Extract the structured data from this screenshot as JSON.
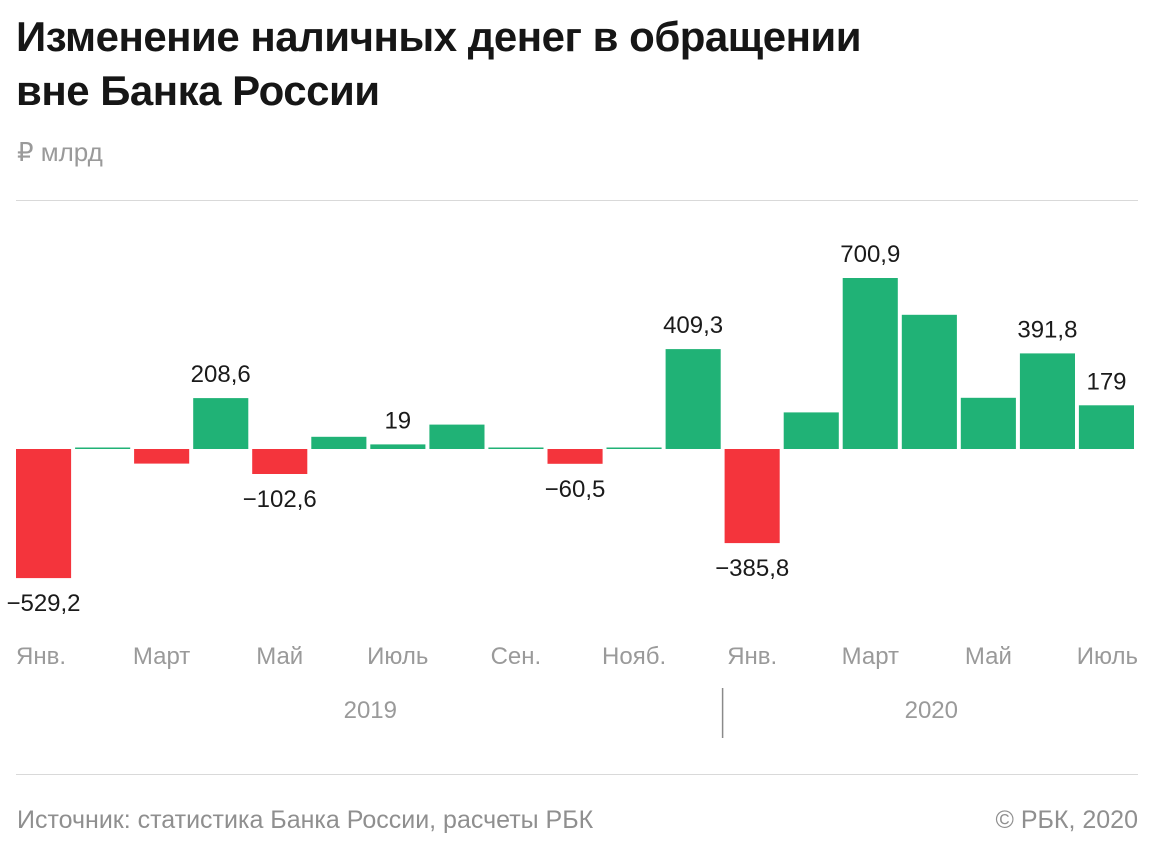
{
  "header": {
    "title_line1": "Изменение наличных денег в обращении",
    "title_line2": "вне Банка России",
    "unit": "₽ млрд"
  },
  "footer": {
    "source": "Источник: статистика Банка России, расчеты РБК",
    "copyright": "© РБК, 2020"
  },
  "chart_data": {
    "type": "bar",
    "categories": [
      "Янв. 2019",
      "Фев. 2019",
      "Март 2019",
      "Апр. 2019",
      "Май 2019",
      "Июнь 2019",
      "Июль 2019",
      "Авг. 2019",
      "Сен. 2019",
      "Окт. 2019",
      "Нояб. 2019",
      "Дек. 2019",
      "Янв. 2020",
      "Фев. 2020",
      "Март 2020",
      "Апр. 2020",
      "Май 2020",
      "Июнь 2020",
      "Июль 2020"
    ],
    "values": [
      -529.2,
      5,
      -60,
      208.6,
      -102.6,
      50,
      19,
      100,
      3,
      -60.5,
      3,
      409.3,
      -385.8,
      150,
      700.9,
      550,
      210,
      391.8,
      179
    ],
    "value_labels": [
      "−529,2",
      "",
      "",
      "208,6",
      "−102,6",
      "",
      "19",
      "",
      "",
      "−60,5",
      "",
      "409,3",
      "−385,8",
      "",
      "700,9",
      "",
      "",
      "391,8",
      "179"
    ],
    "tick_labels": [
      "Янв.",
      "",
      "Март",
      "",
      "Май",
      "",
      "Июль",
      "",
      "Сен.",
      "",
      "Нояб.",
      "",
      "Янв.",
      "",
      "Март",
      "",
      "Май",
      "",
      "Июль"
    ],
    "year_groups": [
      {
        "label": "2019",
        "start": 0,
        "end": 11
      },
      {
        "label": "2020",
        "start": 12,
        "end": 18
      }
    ],
    "colors": {
      "positive": "#20b276",
      "negative": "#f4343c"
    },
    "ylim": [
      -550,
      760
    ],
    "grid": false,
    "legend": "none"
  }
}
